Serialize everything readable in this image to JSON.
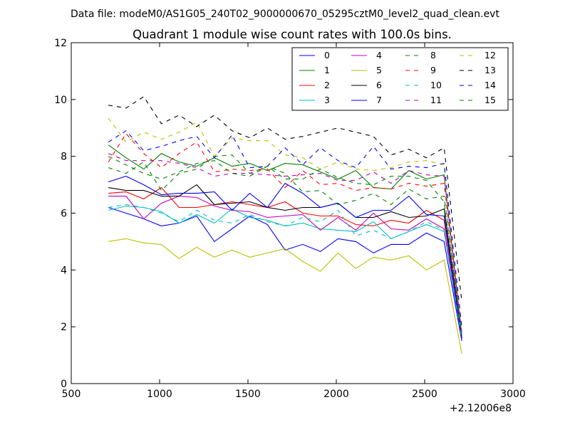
{
  "suptitle": "Data file: modeM0/AS1G05_240T02_9000000670_05295cztM0_level2_quad_clean.evt",
  "chart_data": {
    "type": "line",
    "title": "Quadrant 1 module wise count rates with 100.0s bins.",
    "xlim": [
      500,
      3000
    ],
    "ylim": [
      0,
      12
    ],
    "xticks": [
      500,
      1000,
      1500,
      2000,
      2500,
      3000
    ],
    "yticks": [
      0,
      2,
      4,
      6,
      8,
      10,
      12
    ],
    "x_offset_label": "+2.12006e8",
    "legend_position": "top-right",
    "x": [
      710,
      810,
      910,
      1010,
      1110,
      1210,
      1310,
      1410,
      1510,
      1610,
      1710,
      1810,
      1910,
      2010,
      2110,
      2210,
      2310,
      2410,
      2510,
      2610,
      2710
    ],
    "series": [
      {
        "name": "0",
        "color": "#0000ff",
        "dash": "solid",
        "values": [
          6.2,
          6.0,
          5.8,
          5.55,
          5.65,
          5.9,
          5.0,
          5.45,
          5.9,
          5.6,
          4.7,
          4.9,
          4.65,
          5.1,
          5.0,
          4.6,
          4.9,
          4.9,
          5.3,
          5.0,
          1.5
        ]
      },
      {
        "name": "1",
        "color": "#008000",
        "dash": "solid",
        "values": [
          8.4,
          7.95,
          7.55,
          8.1,
          7.8,
          7.65,
          7.95,
          7.65,
          7.75,
          7.5,
          7.75,
          7.7,
          7.45,
          7.2,
          7.5,
          6.9,
          6.85,
          7.5,
          7.2,
          7.35,
          1.7
        ]
      },
      {
        "name": "2",
        "color": "#ff0000",
        "dash": "solid",
        "values": [
          6.7,
          6.75,
          6.5,
          6.9,
          6.2,
          6.2,
          6.3,
          6.4,
          6.3,
          6.2,
          6.4,
          6.0,
          5.9,
          5.9,
          5.6,
          5.55,
          5.75,
          5.65,
          6.1,
          5.75,
          1.55
        ]
      },
      {
        "name": "3",
        "color": "#00bfbf",
        "dash": "solid",
        "values": [
          6.1,
          6.25,
          6.2,
          6.05,
          5.65,
          5.95,
          5.65,
          6.15,
          5.85,
          5.75,
          5.55,
          5.65,
          5.45,
          5.4,
          5.35,
          5.7,
          5.1,
          5.35,
          5.6,
          5.35,
          1.6
        ]
      },
      {
        "name": "4",
        "color": "#bf00bf",
        "dash": "solid",
        "values": [
          6.6,
          6.6,
          5.8,
          6.35,
          6.6,
          6.55,
          6.25,
          6.1,
          6.05,
          5.85,
          5.9,
          5.95,
          5.4,
          5.85,
          5.4,
          6.0,
          5.45,
          5.4,
          5.8,
          5.45,
          1.6
        ]
      },
      {
        "name": "5",
        "color": "#bfbf00",
        "dash": "solid",
        "values": [
          5.0,
          5.1,
          4.95,
          4.9,
          4.4,
          4.8,
          4.45,
          4.7,
          4.45,
          4.6,
          4.75,
          4.3,
          3.95,
          4.6,
          4.05,
          4.45,
          4.35,
          4.5,
          4.0,
          4.35,
          1.05
        ]
      },
      {
        "name": "6",
        "color": "#000000",
        "dash": "solid",
        "values": [
          6.9,
          6.8,
          6.8,
          6.6,
          6.6,
          7.0,
          6.3,
          6.35,
          6.4,
          6.2,
          6.1,
          6.2,
          6.2,
          6.35,
          5.85,
          5.85,
          6.05,
          5.85,
          5.9,
          6.15,
          1.6
        ]
      },
      {
        "name": "7",
        "color": "#0000ff",
        "dash": "solid",
        "values": [
          7.1,
          7.3,
          7.0,
          6.65,
          6.7,
          6.7,
          6.75,
          6.1,
          6.7,
          6.2,
          7.05,
          6.7,
          6.2,
          6.35,
          5.85,
          6.1,
          6.1,
          6.6,
          5.95,
          5.9,
          1.6
        ]
      },
      {
        "name": "8",
        "color": "#008000",
        "dash": "dashed",
        "values": [
          7.6,
          7.4,
          7.8,
          6.8,
          7.4,
          7.55,
          8.0,
          8.05,
          7.4,
          7.65,
          7.4,
          6.75,
          6.8,
          6.3,
          6.45,
          6.7,
          6.3,
          6.85,
          6.5,
          6.6,
          1.7
        ]
      },
      {
        "name": "9",
        "color": "#ff0000",
        "dash": "dashed",
        "values": [
          7.8,
          8.8,
          8.1,
          7.6,
          8.1,
          8.5,
          7.45,
          7.55,
          7.5,
          7.55,
          6.9,
          7.5,
          7.0,
          7.05,
          6.8,
          6.9,
          6.85,
          7.05,
          6.95,
          7.05,
          1.7
        ]
      },
      {
        "name": "10",
        "color": "#00bfbf",
        "dash": "dashed",
        "values": [
          6.2,
          6.3,
          6.2,
          6.0,
          5.7,
          6.1,
          5.75,
          5.65,
          5.95,
          5.7,
          5.55,
          5.85,
          5.7,
          6.1,
          5.2,
          5.4,
          5.1,
          5.35,
          5.7,
          5.4,
          1.6
        ]
      },
      {
        "name": "11",
        "color": "#bf00bf",
        "dash": "dashed",
        "values": [
          8.1,
          7.85,
          7.85,
          7.85,
          7.75,
          7.6,
          7.3,
          7.4,
          7.4,
          7.35,
          7.3,
          7.35,
          7.4,
          7.15,
          7.15,
          7.45,
          7.05,
          7.5,
          7.35,
          7.3,
          1.8
        ]
      },
      {
        "name": "12",
        "color": "#bfbf00",
        "dash": "dashed",
        "values": [
          9.35,
          8.5,
          8.85,
          8.6,
          8.85,
          9.2,
          8.0,
          8.65,
          8.55,
          8.55,
          8.05,
          7.95,
          7.55,
          7.8,
          7.55,
          7.5,
          7.6,
          7.8,
          7.85,
          7.7,
          1.9
        ]
      },
      {
        "name": "13",
        "color": "#000000",
        "dash": "dashed",
        "values": [
          9.8,
          9.7,
          10.1,
          9.15,
          9.45,
          9.05,
          9.45,
          8.9,
          8.65,
          9.0,
          8.6,
          8.7,
          8.85,
          9.0,
          8.85,
          8.7,
          8.05,
          8.25,
          7.95,
          8.3,
          2.9
        ]
      },
      {
        "name": "14",
        "color": "#0000ff",
        "dash": "dashed",
        "values": [
          8.5,
          8.9,
          8.2,
          8.35,
          8.55,
          8.7,
          7.95,
          8.75,
          7.6,
          7.65,
          8.3,
          7.7,
          8.3,
          7.85,
          7.6,
          8.35,
          7.55,
          7.65,
          7.6,
          7.75,
          2.0
        ]
      },
      {
        "name": "15",
        "color": "#008000",
        "dash": "dashed",
        "values": [
          8.0,
          7.7,
          7.4,
          7.2,
          7.45,
          7.75,
          7.85,
          7.4,
          7.3,
          7.65,
          7.2,
          7.2,
          7.55,
          7.25,
          7.05,
          7.0,
          7.3,
          7.3,
          7.15,
          6.4,
          1.7
        ]
      }
    ]
  }
}
